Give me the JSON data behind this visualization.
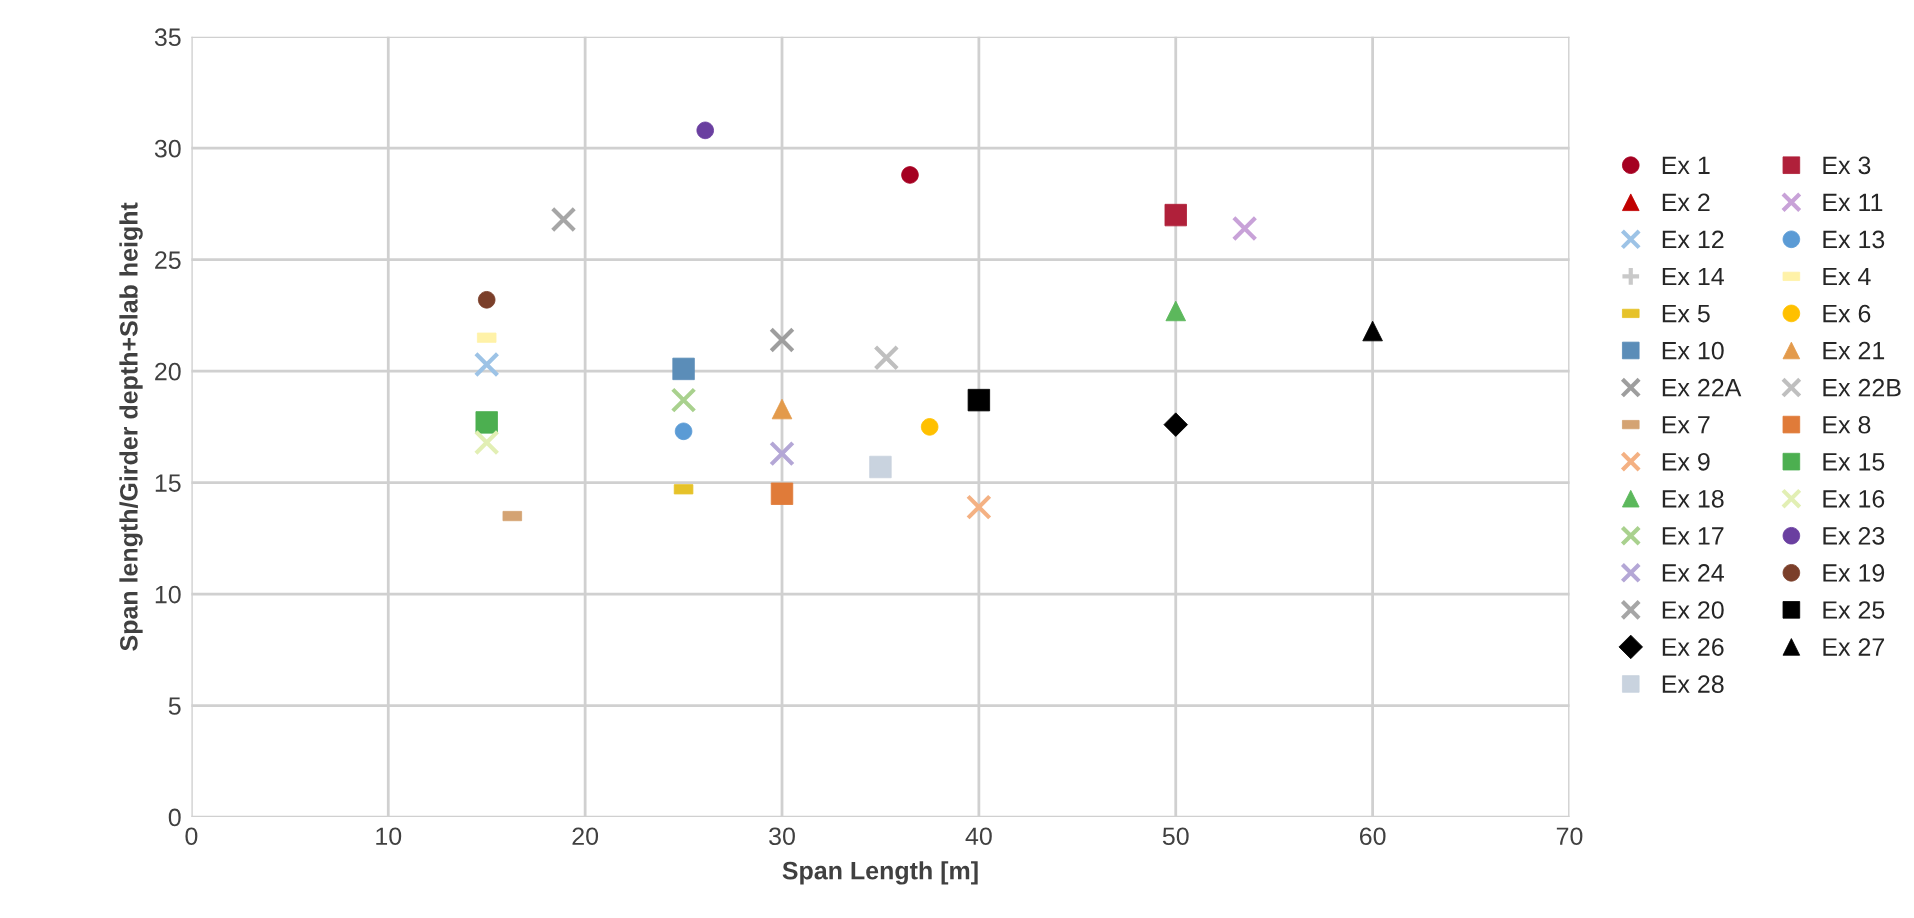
{
  "chart_data": {
    "type": "scatter",
    "xlabel": "Span Length [m]",
    "ylabel": "Span length/Girder depth+Slab height",
    "xlim": [
      0,
      70
    ],
    "xticks": [
      0,
      10,
      20,
      30,
      40,
      50,
      60,
      70
    ],
    "ylim": [
      0,
      35
    ],
    "yticks": [
      0,
      5,
      10,
      15,
      20,
      25,
      30,
      35
    ],
    "grid": true,
    "legend": "right",
    "series": [
      {
        "name": "Ex 1",
        "color": "#a50021",
        "marker": "circle",
        "x": [
          36.5
        ],
        "values": [
          28.8
        ]
      },
      {
        "name": "Ex 2",
        "color": "#c00000",
        "marker": "triangle"
      },
      {
        "name": "Ex 12",
        "color": "#9dc3e6",
        "marker": "cross",
        "x": [
          15
        ],
        "values": [
          20.3
        ]
      },
      {
        "name": "Ex 14",
        "color": "#c9c9c9",
        "marker": "plus"
      },
      {
        "name": "Ex 5",
        "color": "#e6c229",
        "x": [
          25
        ],
        "values": [
          14.7
        ]
      },
      {
        "name": "Ex 10",
        "color": "#5b8db8",
        "marker": "square",
        "x": [
          25
        ],
        "values": [
          20.1
        ]
      },
      {
        "name": "Ex 22A",
        "color": "#9e9e9e",
        "marker": "cross",
        "x": [
          30
        ],
        "values": [
          21.4
        ]
      },
      {
        "name": "Ex 7",
        "color": "#d4a373",
        "x": [
          16.3
        ],
        "values": [
          13.5
        ]
      },
      {
        "name": "Ex 9",
        "color": "#f4b183",
        "marker": "cross",
        "x": [
          40
        ],
        "values": [
          13.9
        ]
      },
      {
        "name": "Ex 18",
        "color": "#5cb85c",
        "marker": "triangle",
        "x": [
          50
        ],
        "values": [
          22.7
        ]
      },
      {
        "name": "Ex 17",
        "color": "#a9d18e",
        "marker": "cross",
        "x": [
          25
        ],
        "values": [
          18.7
        ]
      },
      {
        "name": "Ex 24",
        "color": "#b4a7d6",
        "marker": "cross",
        "x": [
          30
        ],
        "values": [
          16.3
        ]
      },
      {
        "name": "Ex 20",
        "color": "#a6a6a6",
        "marker": "cross",
        "x": [
          18.9
        ],
        "values": [
          26.8
        ]
      },
      {
        "name": "Ex 26",
        "color": "#000000",
        "marker": "diamond",
        "x": [
          50
        ],
        "values": [
          17.6
        ]
      },
      {
        "name": "Ex 28",
        "color": "#c9d3df",
        "marker": "square",
        "x": [
          35
        ],
        "values": [
          15.7
        ]
      },
      {
        "name": "Ex 3",
        "color": "#b0203a",
        "marker": "square",
        "x": [
          50
        ],
        "values": [
          27.0
        ]
      },
      {
        "name": "Ex 11",
        "color": "#c8a2d8",
        "marker": "cross",
        "x": [
          53.5
        ],
        "values": [
          26.4
        ]
      },
      {
        "name": "Ex 13",
        "color": "#5b9bd5",
        "marker": "circle",
        "x": [
          25
        ],
        "values": [
          17.3
        ]
      },
      {
        "name": "Ex 4",
        "color": "#fff2a8",
        "x": [
          15
        ],
        "values": [
          21.5
        ]
      },
      {
        "name": "Ex 6",
        "color": "#ffc000",
        "marker": "circle",
        "x": [
          37.5
        ],
        "values": [
          17.5
        ]
      },
      {
        "name": "Ex 21",
        "color": "#e39a4b",
        "marker": "triangle",
        "x": [
          30
        ],
        "values": [
          18.3
        ]
      },
      {
        "name": "Ex 22B",
        "color": "#bfbfbf",
        "marker": "cross",
        "x": [
          35.3
        ],
        "values": [
          20.6
        ]
      },
      {
        "name": "Ex 8",
        "color": "#e07b39",
        "marker": "square",
        "x": [
          30
        ],
        "values": [
          14.5
        ]
      },
      {
        "name": "Ex 15",
        "color": "#4caf50",
        "marker": "square",
        "x": [
          15
        ],
        "values": [
          17.7
        ]
      },
      {
        "name": "Ex 16",
        "color": "#e2efb4",
        "marker": "cross",
        "x": [
          15
        ],
        "values": [
          16.8
        ]
      },
      {
        "name": "Ex 23",
        "color": "#6a3fa0",
        "marker": "circle",
        "x": [
          26.1
        ],
        "values": [
          30.8
        ]
      },
      {
        "name": "Ex 19",
        "color": "#7b3f2a",
        "marker": "circle",
        "x": [
          15
        ],
        "values": [
          23.2
        ]
      },
      {
        "name": "Ex 25",
        "color": "#000000",
        "marker": "square",
        "x": [
          40
        ],
        "values": [
          18.7
        ]
      },
      {
        "name": "Ex 27",
        "color": "#000000",
        "marker": "triangle",
        "x": [
          60
        ],
        "values": [
          21.8
        ]
      }
    ]
  }
}
